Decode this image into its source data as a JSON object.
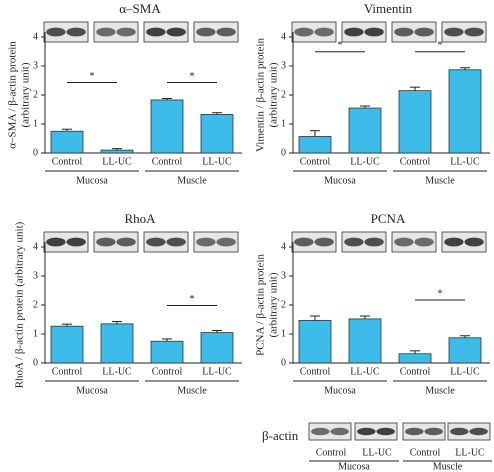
{
  "chart_data": [
    {
      "type": "bar",
      "title": "α–SMA",
      "ylabel": [
        "α–SMA / β-actin protein",
        "(arbitrary unit)"
      ],
      "categories": [
        "Control",
        "LL-UC",
        "Control",
        "LL-UC"
      ],
      "groups": [
        "Mucosa",
        "Muscle"
      ],
      "values": [
        0.75,
        0.1,
        1.83,
        1.33
      ],
      "errors": [
        0.07,
        0.05,
        0.05,
        0.06
      ],
      "color": "#3dbbe9",
      "ylim": [
        0,
        4
      ],
      "yticks": [
        0,
        1,
        2,
        3,
        4
      ],
      "significance": [
        {
          "label": "*",
          "group": "Mucosa"
        },
        {
          "label": "*",
          "group": "Muscle"
        }
      ]
    },
    {
      "type": "bar",
      "title": "Vimentin",
      "ylabel": [
        "Vimentin / β-actin protein",
        "(arbitrary unit)"
      ],
      "categories": [
        "Control",
        "LL-UC",
        "Control",
        "LL-UC"
      ],
      "groups": [
        "Mucosa",
        "Muscle"
      ],
      "values": [
        0.57,
        1.55,
        2.15,
        2.87
      ],
      "errors": [
        0.2,
        0.07,
        0.12,
        0.07
      ],
      "color": "#3dbbe9",
      "ylim": [
        0,
        4
      ],
      "yticks": [
        0,
        1,
        2,
        3,
        4
      ],
      "significance": [
        {
          "label": "*",
          "group": "Mucosa"
        },
        {
          "label": "*",
          "group": "Muscle"
        }
      ]
    },
    {
      "type": "bar",
      "title": "RhoA",
      "ylabel": [
        "RhoA / β-actin protein (arbitrary unit)"
      ],
      "categories": [
        "Control",
        "LL-UC",
        "Control",
        "LL-UC"
      ],
      "groups": [
        "Mucosa",
        "Muscle"
      ],
      "values": [
        1.27,
        1.35,
        0.75,
        1.05
      ],
      "errors": [
        0.07,
        0.08,
        0.08,
        0.07
      ],
      "color": "#3dbbe9",
      "ylim": [
        0,
        4
      ],
      "yticks": [
        0,
        1,
        2,
        3,
        4
      ],
      "significance": [
        {
          "label": "*",
          "group": "Muscle"
        }
      ]
    },
    {
      "type": "bar",
      "title": "PCNA",
      "ylabel": [
        "PCNA / β-actin protein",
        "(arbitrary unit)"
      ],
      "categories": [
        "Control",
        "LL-UC",
        "Control",
        "LL-UC"
      ],
      "groups": [
        "Mucosa",
        "Muscle"
      ],
      "values": [
        1.47,
        1.52,
        0.32,
        0.87
      ],
      "errors": [
        0.15,
        0.1,
        0.1,
        0.07
      ],
      "color": "#3dbbe9",
      "ylim": [
        0,
        4
      ],
      "yticks": [
        0,
        1,
        2,
        3,
        4
      ],
      "significance": [
        {
          "label": "*",
          "group": "Muscle"
        }
      ]
    }
  ],
  "loading_control": {
    "label": "β-actin",
    "categories": [
      "Control",
      "LL-UC",
      "Control",
      "LL-UC"
    ],
    "groups": [
      "Mucosa",
      "Muscle"
    ]
  }
}
